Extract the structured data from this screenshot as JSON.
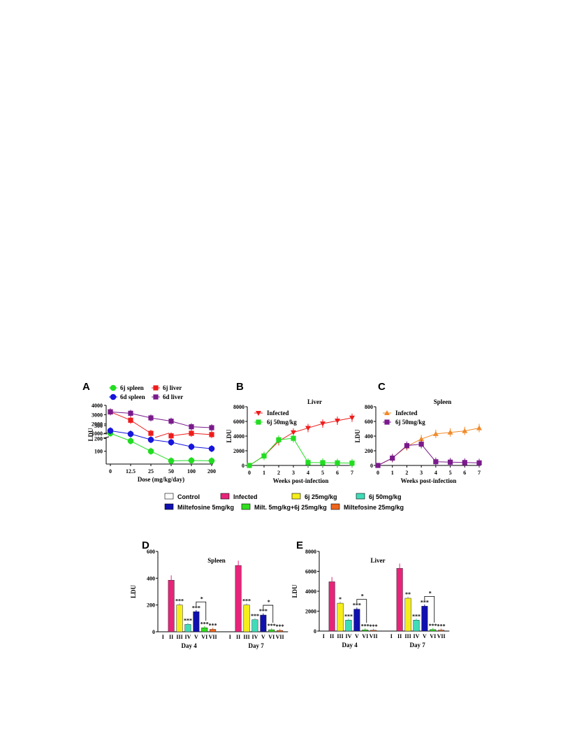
{
  "panel_labels": {
    "A": "A",
    "B": "B",
    "C": "C",
    "D": "D",
    "E": "E"
  },
  "legend_bar": [
    "Control",
    "Infected",
    "6j 25mg/kg",
    "6j 50mg/kg",
    "Miltefosine 5mg/kg",
    "Milt. 5mg/kg+6j 25mg/kg",
    "Miltefosine 25mg/kg"
  ],
  "chart_data": [
    {
      "id": "A",
      "type": "line",
      "title": "",
      "xlabel": "Dose (mg/kg/day)",
      "ylabel": "LDU",
      "categories": [
        "0",
        "12.5",
        "25",
        "50",
        "100",
        "200"
      ],
      "yticks_lower": [
        "100",
        "200",
        "300"
      ],
      "yticks_upper": [
        "1000",
        "2000",
        "3000",
        "4000"
      ],
      "axis_break": "between 300 and 1000",
      "legend_position": "top",
      "series": [
        {
          "name": "6j spleen",
          "color": "#22dd22",
          "marker": "circle",
          "values": [
            240,
            180,
            100,
            25,
            28,
            25
          ]
        },
        {
          "name": "6d spleen",
          "color": "#1515dd",
          "marker": "circle",
          "values": [
            260,
            235,
            190,
            170,
            135,
            120
          ]
        },
        {
          "name": "6j liver",
          "color": "#ee1c1c",
          "marker": "square",
          "values": [
            3300,
            2400,
            1000,
            220,
            240,
            230
          ]
        },
        {
          "name": "6d liver",
          "color": "#7a1a8c",
          "marker": "square",
          "values": [
            3300,
            3150,
            2650,
            2300,
            1700,
            1600
          ]
        }
      ]
    },
    {
      "id": "B",
      "type": "line",
      "title": "Liver",
      "xlabel": "Weeks post-infection",
      "ylabel": "LDU",
      "x": [
        0,
        1,
        2,
        3,
        4,
        5,
        6,
        7
      ],
      "ylim": [
        0,
        8000
      ],
      "yticks": [
        "0",
        "2000",
        "4000",
        "6000",
        "8000"
      ],
      "legend_position": "top-left",
      "series": [
        {
          "name": "Infected",
          "color": "#ee1c1c",
          "marker": "triangle-down",
          "values": [
            0,
            1300,
            3300,
            4500,
            5100,
            5700,
            6100,
            6500
          ]
        },
        {
          "name": "6j 50mg/kg",
          "color": "#22dd22",
          "marker": "square",
          "values": [
            0,
            1300,
            3500,
            3700,
            400,
            380,
            350,
            320
          ]
        }
      ]
    },
    {
      "id": "C",
      "type": "line",
      "title": "Spleen",
      "xlabel": "Weeks post-infection",
      "ylabel": "LDU",
      "x": [
        0,
        1,
        2,
        3,
        4,
        5,
        6,
        7
      ],
      "ylim": [
        0,
        800
      ],
      "yticks": [
        "0",
        "200",
        "400",
        "600",
        "800"
      ],
      "legend_position": "top-left",
      "series": [
        {
          "name": "Infected",
          "color": "#f08a2a",
          "marker": "triangle-up",
          "values": [
            0,
            100,
            260,
            360,
            430,
            450,
            470,
            510
          ]
        },
        {
          "name": "6j 50mg/kg",
          "color": "#7a1a8c",
          "marker": "square",
          "values": [
            0,
            100,
            270,
            290,
            50,
            45,
            40,
            35
          ]
        }
      ]
    },
    {
      "id": "D",
      "type": "bar",
      "title": "Spleen",
      "ylabel": "LDU",
      "ylim": [
        0,
        600
      ],
      "yticks": [
        "0",
        "200",
        "400",
        "600"
      ],
      "group_labels": [
        "Day 4",
        "Day 7"
      ],
      "categories": [
        "I",
        "II",
        "III",
        "IV",
        "V",
        "VI",
        "VII"
      ],
      "colors": [
        "#ffffff",
        "#e8247a",
        "#f5ee1a",
        "#3fdcb8",
        "#1010b0",
        "#33dd22",
        "#f0641c"
      ],
      "groups": [
        {
          "values": [
            0,
            385,
            200,
            55,
            150,
            30,
            18
          ],
          "labels": [
            "",
            "",
            "***",
            "***",
            "***",
            "***",
            "***"
          ]
        },
        {
          "values": [
            0,
            495,
            200,
            90,
            125,
            15,
            10
          ],
          "labels": [
            "",
            "",
            "***",
            "***",
            "***",
            "***",
            "***"
          ]
        }
      ],
      "bracket_label": "*"
    },
    {
      "id": "E",
      "type": "bar",
      "title": "Liver",
      "ylabel": "LDU",
      "ylim": [
        0,
        8000
      ],
      "yticks": [
        "0",
        "2000",
        "4000",
        "6000",
        "8000"
      ],
      "group_labels": [
        "Day 4",
        "Day 7"
      ],
      "categories": [
        "I",
        "II",
        "III",
        "IV",
        "V",
        "VI",
        "VII"
      ],
      "colors": [
        "#ffffff",
        "#e8247a",
        "#f5ee1a",
        "#3fdcb8",
        "#1010b0",
        "#33dd22",
        "#f0641c"
      ],
      "groups": [
        {
          "values": [
            0,
            4950,
            2800,
            1100,
            2200,
            120,
            80
          ],
          "labels": [
            "",
            "",
            "*",
            "***",
            "***",
            "***",
            "***"
          ]
        },
        {
          "values": [
            0,
            6300,
            3300,
            1100,
            2500,
            150,
            100
          ],
          "labels": [
            "",
            "",
            "**",
            "***",
            "***",
            "***",
            "***"
          ]
        }
      ],
      "bracket_label": "*"
    }
  ]
}
